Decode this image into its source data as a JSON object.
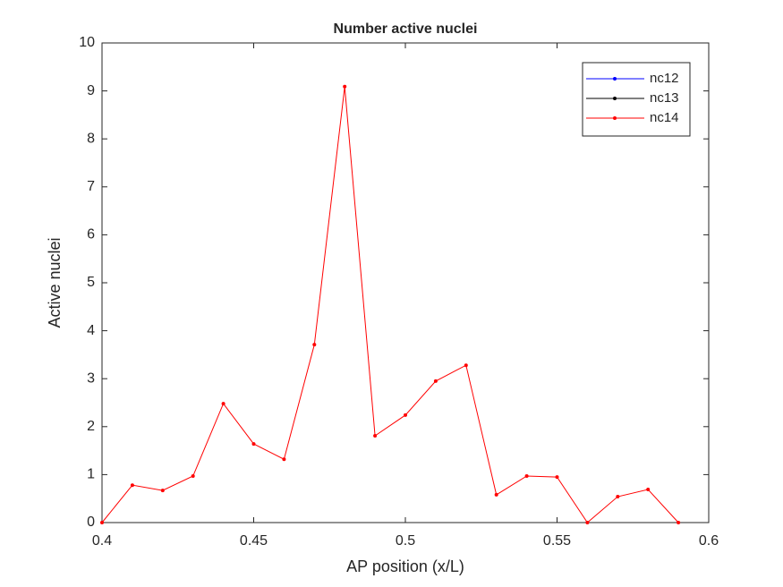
{
  "chart_data": {
    "type": "line",
    "title": "Number active nuclei",
    "xlabel": "AP position (x/L)",
    "ylabel": "Active nuclei",
    "x": [
      0.4,
      0.41,
      0.42,
      0.43,
      0.44,
      0.45,
      0.46,
      0.47,
      0.48,
      0.49,
      0.5,
      0.51,
      0.52,
      0.53,
      0.54,
      0.55,
      0.56,
      0.57,
      0.58,
      0.59
    ],
    "series": [
      {
        "name": "nc12",
        "color": "#0000ff",
        "values": [
          null,
          null,
          null,
          null,
          null,
          null,
          null,
          null,
          null,
          null,
          null,
          null,
          null,
          null,
          null,
          null,
          null,
          null,
          null,
          null
        ]
      },
      {
        "name": "nc13",
        "color": "#000000",
        "values": [
          null,
          null,
          null,
          null,
          null,
          null,
          null,
          null,
          null,
          null,
          null,
          null,
          null,
          null,
          null,
          null,
          null,
          null,
          null,
          null
        ]
      },
      {
        "name": "nc14",
        "color": "#ff0000",
        "values": [
          0,
          0.78,
          0.67,
          0.97,
          2.48,
          1.64,
          1.32,
          3.71,
          9.09,
          1.81,
          2.24,
          2.95,
          3.28,
          0.58,
          0.97,
          0.95,
          0,
          0.54,
          0.69,
          0
        ]
      }
    ],
    "xlim": [
      0.4,
      0.6
    ],
    "xticks": [
      0.4,
      0.45,
      0.5,
      0.55,
      0.6
    ],
    "ylim": [
      0,
      10
    ],
    "yticks": [
      0,
      1,
      2,
      3,
      4,
      5,
      6,
      7,
      8,
      9,
      10
    ],
    "legend": "northeast"
  }
}
